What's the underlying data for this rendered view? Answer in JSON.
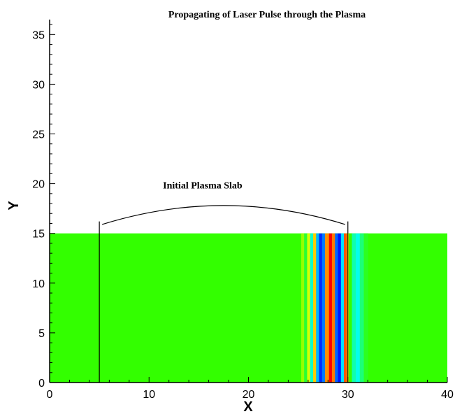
{
  "chart_data": {
    "type": "heatmap",
    "title": "Propagating of Laser Pulse through the Plasma",
    "xlabel": "X",
    "ylabel": "Y",
    "xlim": [
      0,
      40
    ],
    "ylim": [
      0,
      36.5
    ],
    "x_ticks": [
      "0",
      "10",
      "20",
      "30",
      "40"
    ],
    "y_ticks": [
      "0",
      "5",
      "10",
      "15",
      "20",
      "25",
      "30",
      "35"
    ],
    "grid": false,
    "field_region": {
      "x": [
        0,
        40
      ],
      "y": [
        0,
        15
      ]
    },
    "background_color": "#33ff00",
    "colormap": [
      "#0000ff",
      "#00ffff",
      "#33ff00",
      "#ffff00",
      "#ff0000"
    ],
    "bands": [
      {
        "x0": 25.3,
        "x1": 25.6,
        "level": 0.62
      },
      {
        "x0": 25.6,
        "x1": 25.9,
        "level": 0.45
      },
      {
        "x0": 25.9,
        "x1": 26.2,
        "level": 0.7
      },
      {
        "x0": 26.2,
        "x1": 26.5,
        "level": 0.3
      },
      {
        "x0": 26.5,
        "x1": 26.8,
        "level": 0.8
      },
      {
        "x0": 26.8,
        "x1": 27.1,
        "level": 0.18
      },
      {
        "x0": 27.1,
        "x1": 27.4,
        "level": 0.04
      },
      {
        "x0": 27.4,
        "x1": 27.7,
        "level": 0.12
      },
      {
        "x0": 27.7,
        "x1": 28.1,
        "level": 0.86
      },
      {
        "x0": 28.1,
        "x1": 28.4,
        "level": 1.0
      },
      {
        "x0": 28.4,
        "x1": 28.7,
        "level": 0.88
      },
      {
        "x0": 28.7,
        "x1": 29.0,
        "level": 0.1
      },
      {
        "x0": 29.0,
        "x1": 29.3,
        "level": 0.02
      },
      {
        "x0": 29.3,
        "x1": 29.6,
        "level": 0.22
      },
      {
        "x0": 29.6,
        "x1": 29.9,
        "level": 0.92
      },
      {
        "x0": 29.9,
        "x1": 30.1,
        "level": 0.74
      },
      {
        "x0": 30.1,
        "x1": 30.4,
        "level": 0.5
      },
      {
        "x0": 30.4,
        "x1": 30.8,
        "level": 0.33
      },
      {
        "x0": 30.8,
        "x1": 31.2,
        "level": 0.27
      },
      {
        "x0": 31.2,
        "x1": 31.6,
        "level": 0.38
      },
      {
        "x0": 31.6,
        "x1": 32.0,
        "level": 0.47
      }
    ],
    "annotations": [
      {
        "text": "Initial Plasma Slab",
        "x_range": [
          5,
          30
        ],
        "y_bottom": 0,
        "y_top": 16.2,
        "peak_y": 17.8
      }
    ]
  }
}
